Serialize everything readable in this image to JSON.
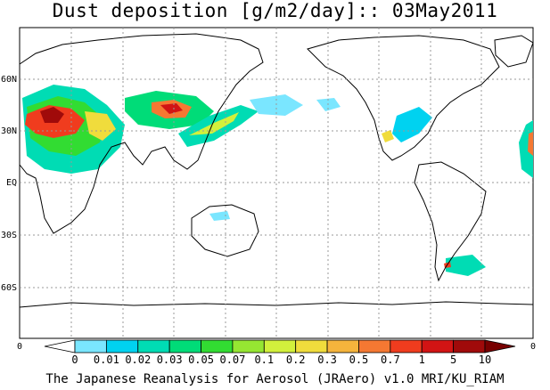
{
  "title": "Dust deposition [g/m2/day]:: 03May2011",
  "footer": "The Japanese Reanalysis for Aerosol (JRAero) v1.0 MRI/KU_RIAM",
  "axes": {
    "lat_labels": [
      "60N",
      "30N",
      "EQ",
      "30S",
      "60S"
    ],
    "lon_labels": [
      "0",
      "0"
    ]
  },
  "colorbar": {
    "labels": [
      "0",
      "0.01",
      "0.02",
      "0.03",
      "0.05",
      "0.07",
      "0.1",
      "0.2",
      "0.3",
      "0.5",
      "0.7",
      "1",
      "5",
      "10"
    ],
    "colors": [
      "#ffffff",
      "#7ae6ff",
      "#00d2f0",
      "#00dcb4",
      "#00dc78",
      "#32dc32",
      "#96e632",
      "#d2f03c",
      "#f0dc3c",
      "#f5b43c",
      "#f57832",
      "#f03c1e",
      "#d21414",
      "#a00a0a",
      "#780000"
    ]
  },
  "style": {
    "grid_color": "#999999",
    "coast_color": "#000000"
  }
}
